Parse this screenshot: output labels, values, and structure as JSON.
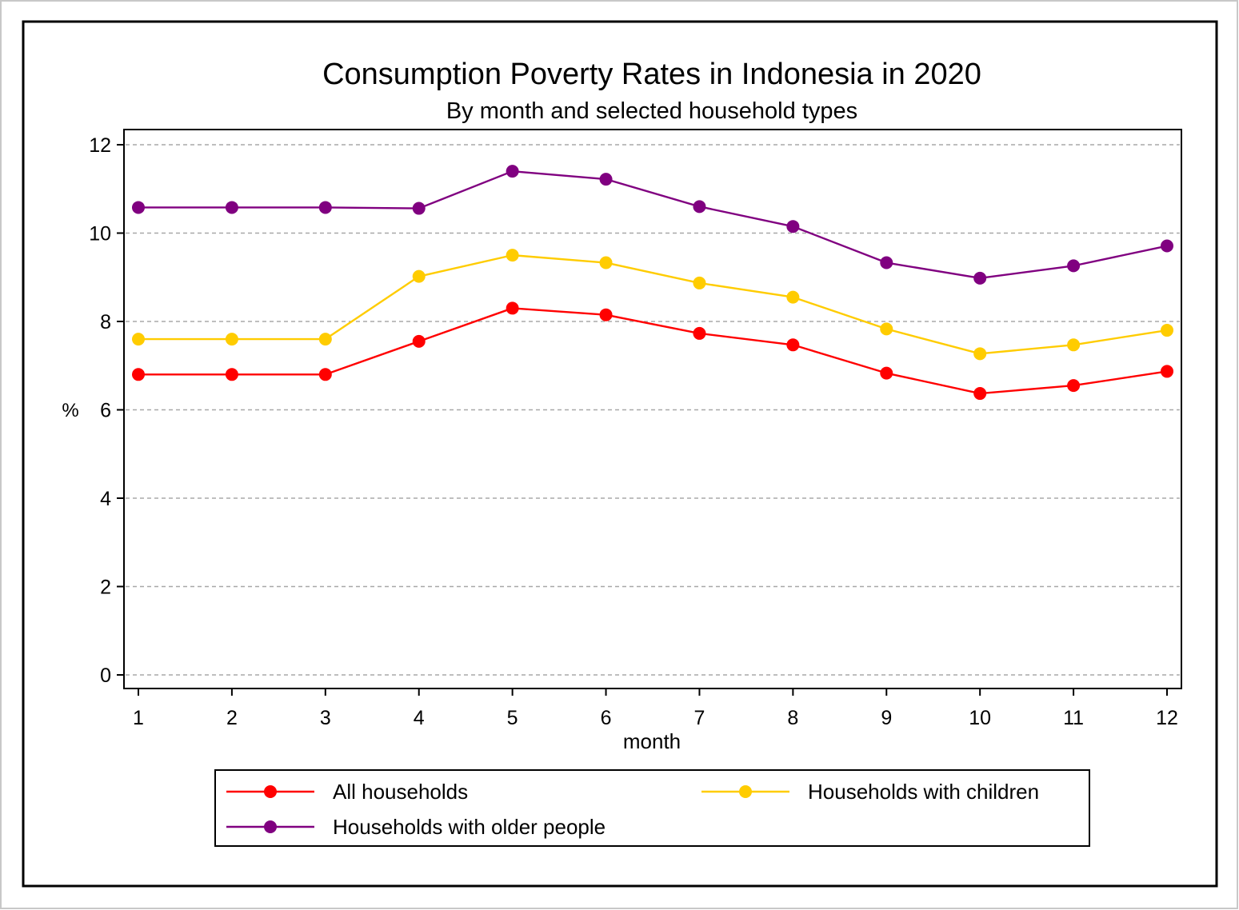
{
  "chart_data": {
    "type": "line",
    "title": "Consumption Poverty Rates in Indonesia in 2020",
    "subtitle": "By month and selected household types",
    "xlabel": "month",
    "ylabel": "%",
    "x": [
      1,
      2,
      3,
      4,
      5,
      6,
      7,
      8,
      9,
      10,
      11,
      12
    ],
    "xticks": [
      "1",
      "2",
      "3",
      "4",
      "5",
      "6",
      "7",
      "8",
      "9",
      "10",
      "11",
      "12"
    ],
    "yticks": [
      "0",
      "2",
      "4",
      "6",
      "8",
      "10",
      "12"
    ],
    "ylim": [
      0,
      12
    ],
    "xlim": [
      1,
      12
    ],
    "grid": true,
    "legend_position": "bottom",
    "series": [
      {
        "name": "All households",
        "color": "#ff0000",
        "values": [
          6.8,
          6.8,
          6.8,
          7.55,
          8.3,
          8.15,
          7.73,
          7.47,
          6.83,
          6.37,
          6.55,
          6.87
        ]
      },
      {
        "name": "Households with children",
        "color": "#ffcc00",
        "values": [
          7.6,
          7.6,
          7.6,
          9.02,
          9.5,
          9.33,
          8.87,
          8.55,
          7.83,
          7.27,
          7.47,
          7.8
        ]
      },
      {
        "name": "Households with older people",
        "color": "#800080",
        "values": [
          10.58,
          10.58,
          10.58,
          10.56,
          11.4,
          11.22,
          10.6,
          10.15,
          9.33,
          8.98,
          9.26,
          9.71
        ]
      }
    ]
  }
}
